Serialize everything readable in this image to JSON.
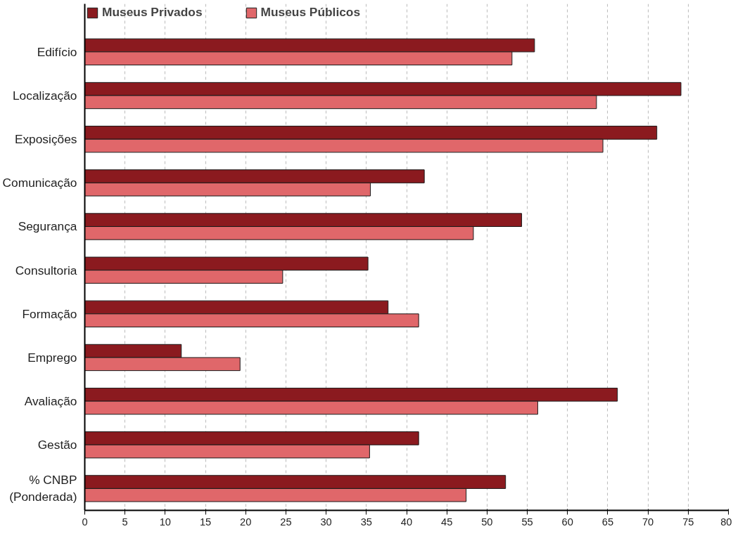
{
  "chart_data": {
    "type": "bar",
    "orientation": "horizontal",
    "categories": [
      "Edifício",
      "Localização",
      "Exposições",
      "Comunicação",
      "Segurança",
      "Consultoria",
      "Formação",
      "Emprego",
      "Avaliação",
      "Gestão",
      "% CNBP\n(Ponderada)"
    ],
    "series": [
      {
        "name": "Museus Privados",
        "color": "#8b1a1f",
        "values": [
          55.9,
          74.1,
          71.1,
          42.2,
          54.3,
          35.2,
          37.7,
          12.0,
          66.2,
          41.5,
          52.3
        ]
      },
      {
        "name": "Museus Públicos",
        "color": "#e0676a",
        "values": [
          53.1,
          63.6,
          64.4,
          35.5,
          48.3,
          24.6,
          41.5,
          19.3,
          56.3,
          35.4,
          47.4
        ]
      }
    ],
    "xlim": [
      0,
      80
    ],
    "xticks": [
      0,
      5,
      10,
      15,
      20,
      25,
      30,
      35,
      40,
      45,
      50,
      55,
      60,
      65,
      70,
      75,
      80
    ],
    "grid": "x",
    "legend": "top left"
  }
}
